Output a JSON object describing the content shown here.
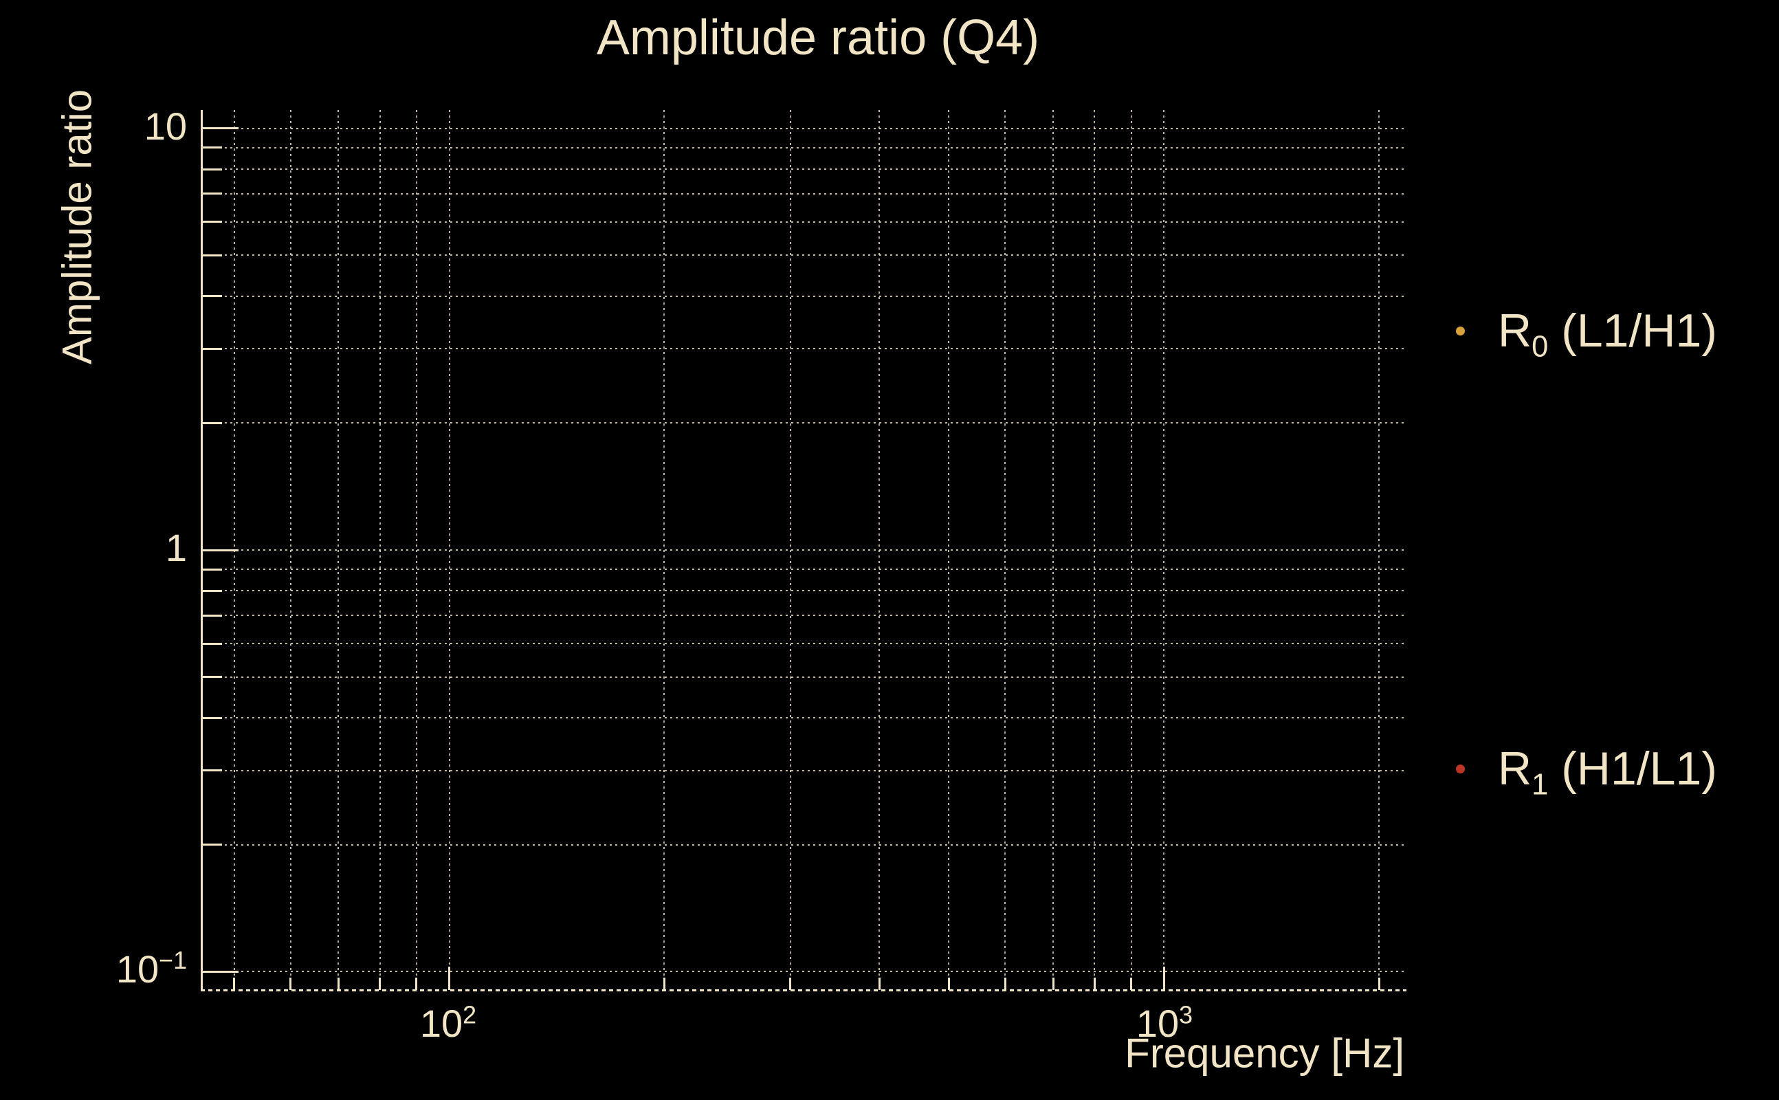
{
  "figure": {
    "background_color": "#000000",
    "text_color": "#f1e5c5",
    "grid_color": "#efe3c3"
  },
  "chart_data": {
    "type": "scatter",
    "title": "Amplitude ratio (Q4)",
    "xlabel": "Frequency [Hz]",
    "ylabel": "Amplitude ratio",
    "xscale": "log",
    "yscale": "log",
    "xlim": [
      45.2,
      2185
    ],
    "ylim": [
      0.0905,
      11.05
    ],
    "grid": "major and minor gridlines, dotted",
    "legend_position": "outside right",
    "x_axis": {
      "major_ticks": [
        {
          "value": 100,
          "base": "10",
          "sup": "2"
        },
        {
          "value": 1000,
          "base": "10",
          "sup": "3"
        }
      ],
      "minor_ticks": [
        50,
        60,
        70,
        80,
        90,
        200,
        300,
        400,
        500,
        600,
        700,
        800,
        900,
        2000
      ]
    },
    "y_axis": {
      "major_ticks": [
        {
          "value": 10,
          "base": "10",
          "sup": ""
        },
        {
          "value": 1,
          "base": "1",
          "sup": ""
        },
        {
          "value": 0.1,
          "base": "10",
          "sup": "−1"
        }
      ],
      "minor_ticks": [
        9,
        8,
        7,
        6,
        5,
        4,
        3,
        2,
        0.9,
        0.8,
        0.7,
        0.6,
        0.5,
        0.4,
        0.3,
        0.2
      ]
    },
    "series": [
      {
        "name": "R0 (L1/H1)",
        "marker": "dot",
        "color": "#d9a13a",
        "points": []
      },
      {
        "name": "R1 (H1/L1)",
        "marker": "dot",
        "color": "#bc3524",
        "points": []
      }
    ]
  },
  "legend": {
    "entries": [
      {
        "label_main": "R",
        "label_sub": "0",
        "label_rest": " (L1/H1)",
        "marker_color": "#d9a13a"
      },
      {
        "label_main": "R",
        "label_sub": "1",
        "label_rest": " (H1/L1)",
        "marker_color": "#bc3524"
      }
    ]
  }
}
